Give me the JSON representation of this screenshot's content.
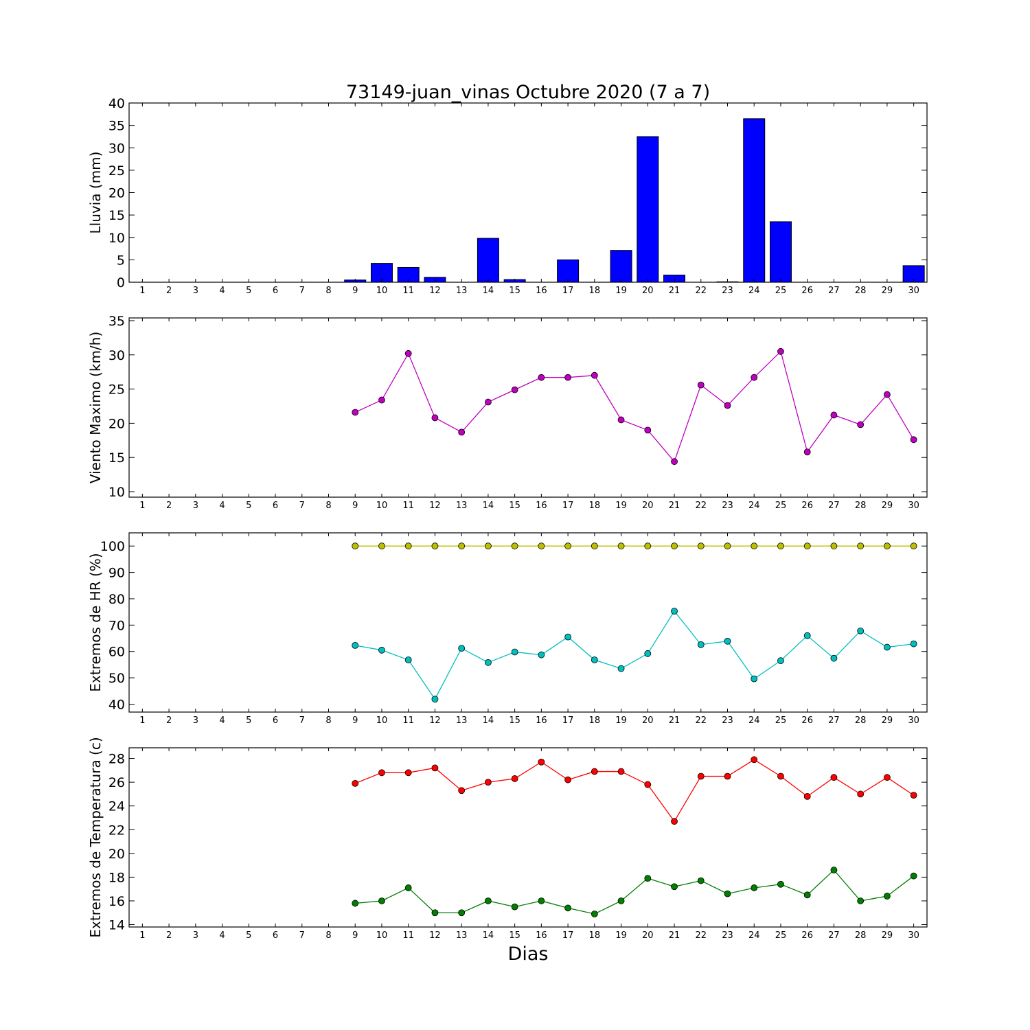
{
  "figure": {
    "title": "73149-juan_vinas Octubre 2020  (7 a 7)",
    "xlabel": "Dias"
  },
  "chart_data": [
    {
      "type": "bar",
      "ylabel": "Lluvia (mm)",
      "ylim": [
        0,
        40
      ],
      "yticks": [
        0,
        5,
        10,
        15,
        20,
        25,
        30,
        35,
        40
      ],
      "xlim": [
        0.5,
        30.5
      ],
      "categories": [
        1,
        2,
        3,
        4,
        5,
        6,
        7,
        8,
        9,
        10,
        11,
        12,
        13,
        14,
        15,
        16,
        17,
        18,
        19,
        20,
        21,
        22,
        23,
        24,
        25,
        26,
        27,
        28,
        29,
        30
      ],
      "series": [
        {
          "color": "#0000ff",
          "values": [
            0,
            0,
            0,
            0,
            0,
            0,
            0,
            0,
            0.5,
            4.2,
            3.3,
            1.1,
            0,
            9.8,
            0.6,
            0,
            5.0,
            0,
            7.1,
            32.5,
            1.6,
            0,
            0.1,
            36.5,
            13.5,
            0,
            0,
            0,
            0,
            3.7
          ]
        }
      ]
    },
    {
      "type": "line",
      "ylabel": "Viento Maximo (km/h)",
      "ylim": [
        9.2,
        35.4
      ],
      "yticks": [
        10,
        15,
        20,
        25,
        30,
        35
      ],
      "xlim": [
        0.5,
        30.5
      ],
      "categories": [
        1,
        2,
        3,
        4,
        5,
        6,
        7,
        8,
        9,
        10,
        11,
        12,
        13,
        14,
        15,
        16,
        17,
        18,
        19,
        20,
        21,
        22,
        23,
        24,
        25,
        26,
        27,
        28,
        29,
        30
      ],
      "x": [
        9,
        10,
        11,
        12,
        13,
        14,
        15,
        16,
        17,
        18,
        19,
        20,
        21,
        22,
        23,
        24,
        25,
        26,
        27,
        28,
        29,
        30
      ],
      "series": [
        {
          "color": "#bf00bf",
          "values": [
            21.6,
            23.4,
            30.2,
            20.8,
            18.7,
            23.1,
            24.9,
            26.7,
            26.7,
            27.0,
            20.5,
            19.0,
            14.4,
            25.6,
            22.6,
            26.7,
            30.5,
            15.8,
            21.2,
            19.8,
            24.2,
            17.6
          ]
        }
      ]
    },
    {
      "type": "line",
      "ylabel": "Extremos de HR (%)",
      "ylim": [
        37,
        105
      ],
      "yticks": [
        40,
        50,
        60,
        70,
        80,
        90,
        100
      ],
      "xlim": [
        0.5,
        30.5
      ],
      "categories": [
        1,
        2,
        3,
        4,
        5,
        6,
        7,
        8,
        9,
        10,
        11,
        12,
        13,
        14,
        15,
        16,
        17,
        18,
        19,
        20,
        21,
        22,
        23,
        24,
        25,
        26,
        27,
        28,
        29,
        30
      ],
      "x": [
        9,
        10,
        11,
        12,
        13,
        14,
        15,
        16,
        17,
        18,
        19,
        20,
        21,
        22,
        23,
        24,
        25,
        26,
        27,
        28,
        29,
        30
      ],
      "series": [
        {
          "color": "#bfbf00",
          "values": [
            100,
            100,
            100,
            100,
            100,
            100,
            100,
            100,
            100,
            100,
            100,
            100,
            100,
            100,
            100,
            100,
            100,
            100,
            100,
            100,
            100,
            100
          ]
        },
        {
          "color": "#00bfbf",
          "values": [
            62.3,
            60.5,
            56.8,
            41.9,
            61.2,
            55.8,
            59.8,
            58.7,
            65.5,
            56.8,
            53.5,
            59.2,
            75.3,
            62.6,
            63.9,
            49.6,
            56.5,
            66.0,
            57.4,
            67.8,
            61.6,
            62.9
          ]
        }
      ]
    },
    {
      "type": "line",
      "ylabel": "Extremos de Temperatura (c)",
      "ylim": [
        13.8,
        28.9
      ],
      "yticks": [
        14,
        16,
        18,
        20,
        22,
        24,
        26,
        28
      ],
      "xlim": [
        0.5,
        30.5
      ],
      "categories": [
        1,
        2,
        3,
        4,
        5,
        6,
        7,
        8,
        9,
        10,
        11,
        12,
        13,
        14,
        15,
        16,
        17,
        18,
        19,
        20,
        21,
        22,
        23,
        24,
        25,
        26,
        27,
        28,
        29,
        30
      ],
      "x": [
        9,
        10,
        11,
        12,
        13,
        14,
        15,
        16,
        17,
        18,
        19,
        20,
        21,
        22,
        23,
        24,
        25,
        26,
        27,
        28,
        29,
        30
      ],
      "series": [
        {
          "color": "#ff0000",
          "values": [
            25.9,
            26.8,
            26.8,
            27.2,
            25.3,
            26.0,
            26.3,
            27.7,
            26.2,
            26.9,
            26.9,
            25.8,
            22.7,
            26.5,
            26.5,
            27.9,
            26.5,
            24.8,
            26.4,
            25.0,
            26.4,
            24.9
          ]
        },
        {
          "color": "#007f00",
          "values": [
            15.8,
            16.0,
            17.1,
            15.0,
            15.0,
            16.0,
            15.5,
            16.0,
            15.4,
            14.9,
            16.0,
            17.9,
            17.2,
            17.7,
            16.6,
            17.1,
            17.4,
            16.5,
            18.6,
            16.0,
            16.4,
            18.1
          ]
        }
      ]
    }
  ]
}
